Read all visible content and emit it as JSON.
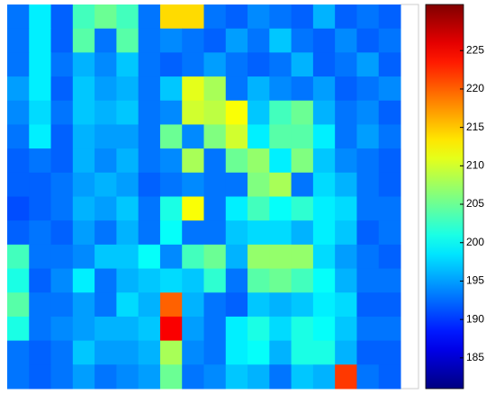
{
  "chart_data": {
    "type": "heatmap",
    "colormap": "jet",
    "clim": [
      181,
      231
    ],
    "cticks": [
      185,
      190,
      195,
      200,
      205,
      210,
      215,
      220,
      225
    ],
    "z": [
      [
        193,
        199,
        192,
        203,
        205,
        203,
        193,
        214,
        214,
        193,
        192,
        194,
        193,
        192,
        196,
        192,
        193,
        192
      ],
      [
        193,
        199,
        192,
        204,
        193,
        204,
        193,
        194,
        193,
        192,
        195,
        193,
        197,
        193,
        192,
        194,
        192,
        193
      ],
      [
        193,
        199,
        193,
        196,
        194,
        197,
        193,
        192,
        193,
        195,
        193,
        192,
        193,
        196,
        192,
        193,
        195,
        192
      ],
      [
        195,
        199,
        192,
        197,
        195,
        196,
        193,
        197,
        211,
        208,
        193,
        196,
        194,
        193,
        195,
        192,
        193,
        194
      ],
      [
        194,
        198,
        193,
        197,
        196,
        197,
        193,
        194,
        210,
        209,
        212,
        197,
        203,
        205,
        196,
        193,
        194,
        192
      ],
      [
        193,
        199,
        192,
        196,
        195,
        195,
        193,
        205,
        194,
        206,
        210,
        199,
        204,
        204,
        199,
        193,
        195,
        193
      ],
      [
        192,
        193,
        192,
        196,
        194,
        196,
        193,
        194,
        208,
        193,
        205,
        207,
        199,
        206,
        197,
        194,
        193,
        192
      ],
      [
        192,
        192,
        193,
        195,
        196,
        195,
        192,
        193,
        194,
        193,
        193,
        206,
        208,
        193,
        198,
        196,
        193,
        192
      ],
      [
        191,
        192,
        193,
        196,
        195,
        197,
        193,
        201,
        212,
        193,
        199,
        203,
        200,
        202,
        199,
        198,
        193,
        193
      ],
      [
        192,
        193,
        192,
        195,
        193,
        196,
        193,
        200,
        193,
        193,
        197,
        198,
        198,
        196,
        199,
        197,
        192,
        193
      ],
      [
        203,
        193,
        193,
        194,
        197,
        197,
        200,
        194,
        203,
        205,
        196,
        207,
        207,
        207,
        198,
        195,
        193,
        192
      ],
      [
        201,
        192,
        194,
        199,
        193,
        196,
        197,
        198,
        197,
        202,
        193,
        204,
        205,
        203,
        200,
        196,
        193,
        193
      ],
      [
        204,
        193,
        193,
        195,
        193,
        198,
        196,
        220,
        196,
        193,
        192,
        197,
        196,
        197,
        199,
        198,
        192,
        192
      ],
      [
        201,
        193,
        194,
        195,
        196,
        196,
        197,
        225,
        195,
        193,
        199,
        201,
        198,
        201,
        200,
        197,
        193,
        193
      ],
      [
        193,
        192,
        193,
        197,
        195,
        195,
        196,
        208,
        194,
        193,
        199,
        200,
        196,
        201,
        201,
        196,
        192,
        192
      ],
      [
        193,
        192,
        193,
        195,
        193,
        194,
        195,
        205,
        193,
        194,
        197,
        196,
        193,
        197,
        196,
        222,
        193,
        192
      ]
    ]
  }
}
